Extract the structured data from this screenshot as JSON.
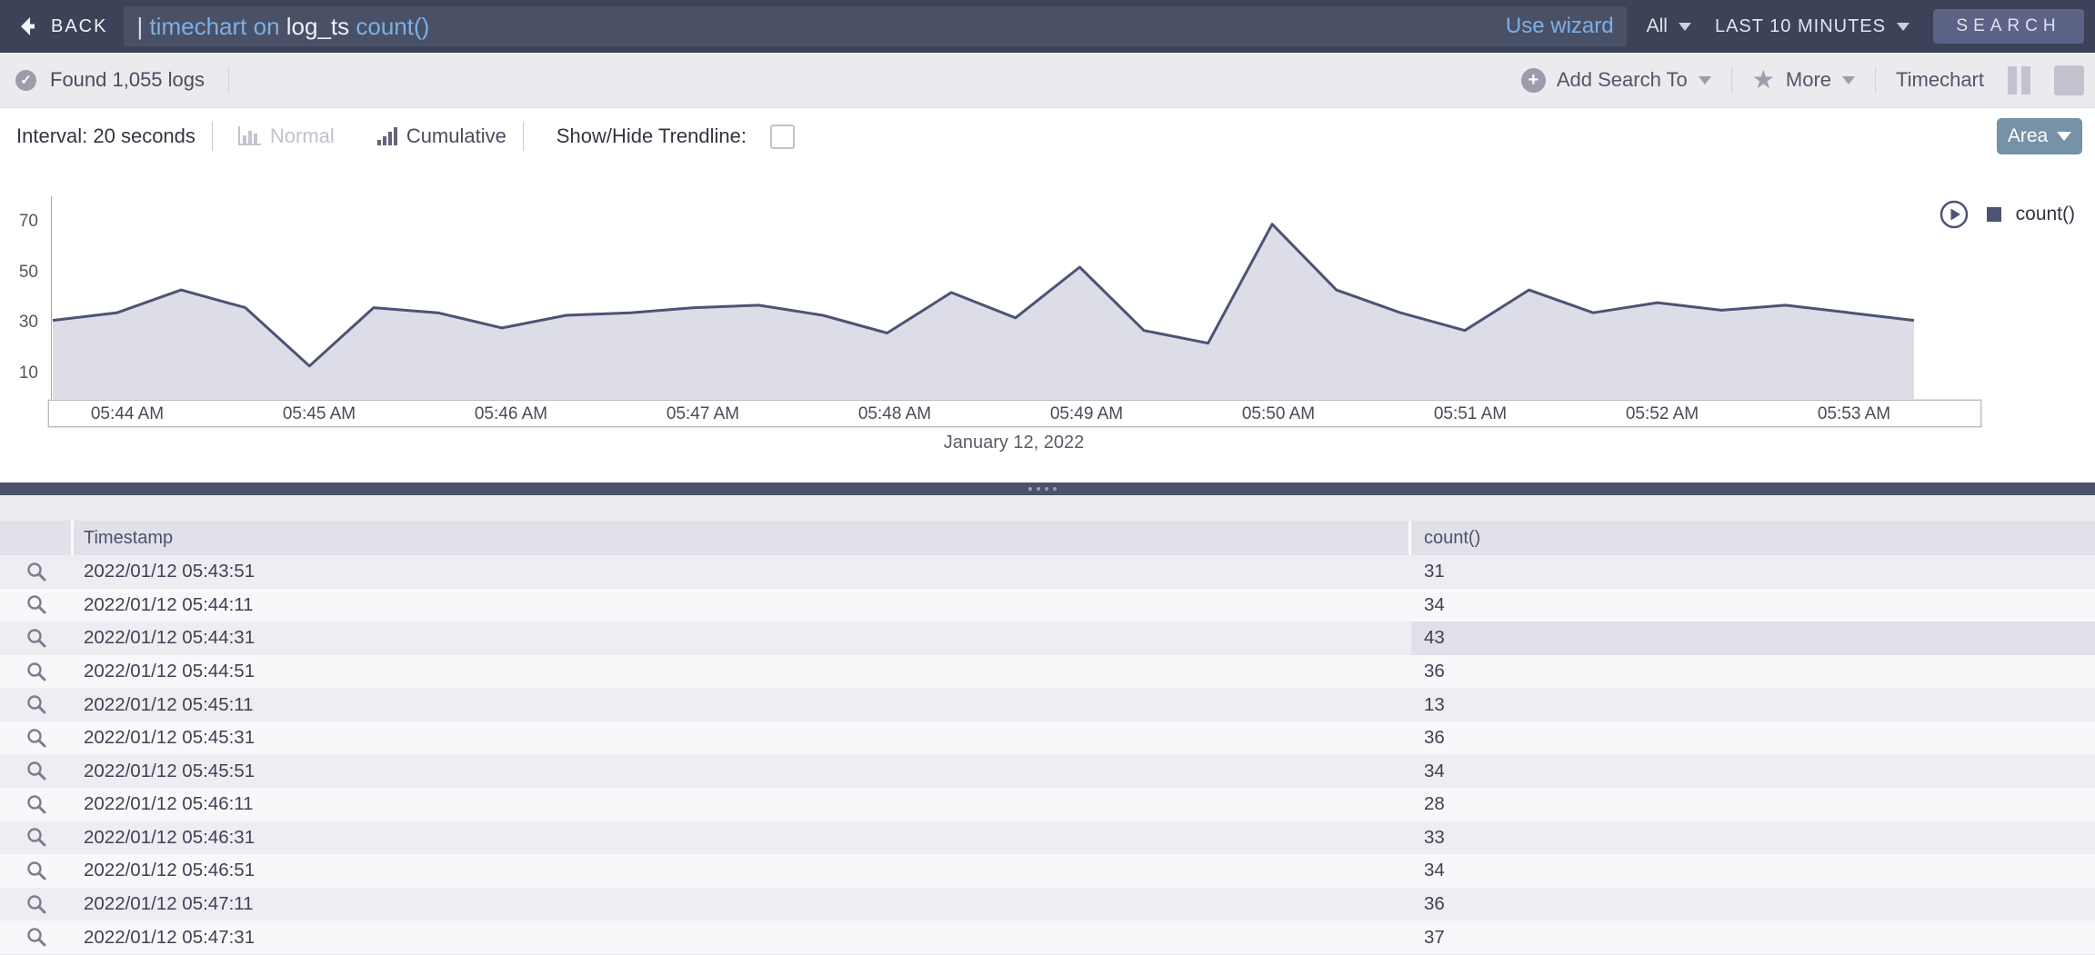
{
  "topbar": {
    "back_label": "BACK",
    "query_tokens": [
      {
        "text": "| ",
        "kind": "plain"
      },
      {
        "text": "timechart ",
        "kind": "keyword"
      },
      {
        "text": "on ",
        "kind": "keyword"
      },
      {
        "text": "log_ts ",
        "kind": "field"
      },
      {
        "text": "count()",
        "kind": "keyword"
      }
    ],
    "use_wizard_label": "Use wizard",
    "scope_label": "All",
    "time_range_label": "LAST 10 MINUTES",
    "search_label": "SEARCH"
  },
  "statusbar": {
    "result_summary": "Found 1,055 logs",
    "add_search_to_label": "Add Search To",
    "more_label": "More",
    "view_label": "Timechart"
  },
  "controls": {
    "interval_label": "Interval: 20 seconds",
    "normal_label": "Normal",
    "cumulative_label": "Cumulative",
    "trendline_label": "Show/Hide Trendline:",
    "trendline_checked": false,
    "chart_type_label": "Area"
  },
  "chart_data": {
    "type": "area",
    "series": [
      {
        "name": "count()",
        "values": [
          31,
          34,
          43,
          36,
          13,
          36,
          34,
          28,
          33,
          34,
          36,
          37,
          33,
          26,
          42,
          32,
          52,
          27,
          22,
          69,
          43,
          34,
          27,
          43,
          34,
          38,
          35,
          37,
          34,
          31
        ]
      }
    ],
    "x_start": "05:43:51",
    "x_interval_seconds": 20,
    "x_tick_labels": [
      "05:44 AM",
      "05:45 AM",
      "05:46 AM",
      "05:47 AM",
      "05:48 AM",
      "05:49 AM",
      "05:50 AM",
      "05:51 AM",
      "05:52 AM",
      "05:53 AM"
    ],
    "date_label": "January 12, 2022",
    "y_ticks": [
      10,
      30,
      50,
      70
    ],
    "ylim": [
      0,
      80
    ],
    "grid": false,
    "legend_position": "top-right",
    "line_color": "#4d5374",
    "fill_color": "#dddde7"
  },
  "table": {
    "columns": [
      "Timestamp",
      "count()"
    ],
    "rows": [
      {
        "timestamp": "2022/01/12 05:43:51",
        "count": "31"
      },
      {
        "timestamp": "2022/01/12 05:44:11",
        "count": "34"
      },
      {
        "timestamp": "2022/01/12 05:44:31",
        "count": "43",
        "highlighted": true
      },
      {
        "timestamp": "2022/01/12 05:44:51",
        "count": "36"
      },
      {
        "timestamp": "2022/01/12 05:45:11",
        "count": "13"
      },
      {
        "timestamp": "2022/01/12 05:45:31",
        "count": "36"
      },
      {
        "timestamp": "2022/01/12 05:45:51",
        "count": "34"
      },
      {
        "timestamp": "2022/01/12 05:46:11",
        "count": "28"
      },
      {
        "timestamp": "2022/01/12 05:46:31",
        "count": "33"
      },
      {
        "timestamp": "2022/01/12 05:46:51",
        "count": "34"
      },
      {
        "timestamp": "2022/01/12 05:47:11",
        "count": "36"
      },
      {
        "timestamp": "2022/01/12 05:47:31",
        "count": "37"
      }
    ]
  },
  "colors": {
    "navbar_bg": "#3c4257",
    "accent_blue": "#7db0e3",
    "search_button_bg": "#5c6387",
    "area_button_bg": "#7592a6",
    "chart_line": "#4d5374",
    "chart_fill": "#dddde7",
    "divider_bar_bg": "#4c526b"
  }
}
